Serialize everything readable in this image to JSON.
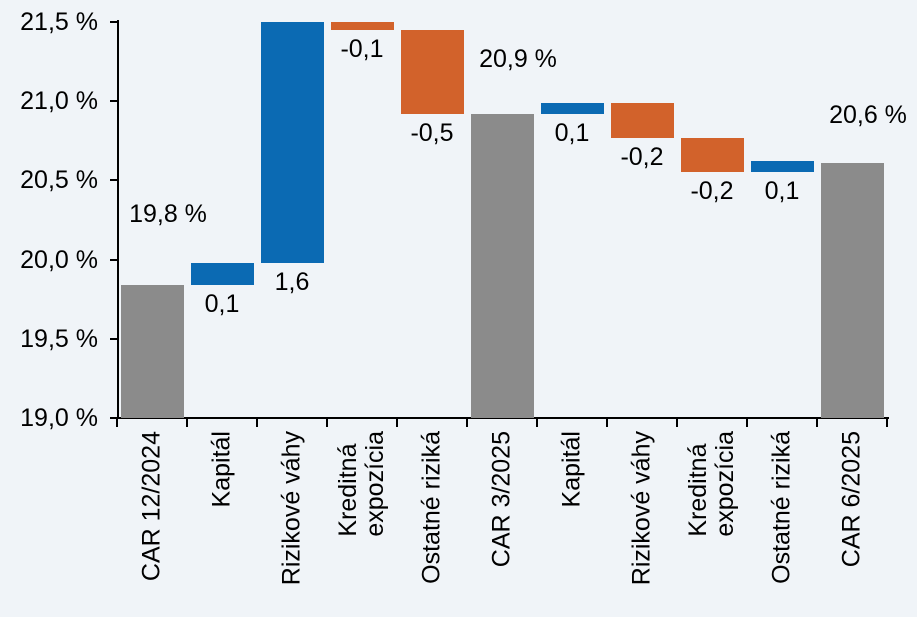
{
  "background_color": "#F0F4F8",
  "colors": {
    "increase": "#0B6AB3",
    "decrease": "#D2622B",
    "total": "#8B8B8B",
    "axis": "#000000",
    "text": "#000000"
  },
  "chart_data": {
    "type": "waterfall",
    "title": "",
    "unit": "%",
    "grid": "off",
    "legend": "none",
    "y_axis": {
      "min": 19.0,
      "max": 21.5,
      "step": 0.5,
      "tick_labels": [
        "21,5 %",
        "21,0 %",
        "20,5 %",
        "20,0 %",
        "19,5 %",
        "19,0 %"
      ]
    },
    "bars": [
      {
        "category": "CAR 12/2024",
        "lines": [
          "CAR 12/2024"
        ],
        "kind": "total",
        "value": 19.8,
        "label": "19,8 %",
        "from": 19.0,
        "to": 19.84,
        "label_gap": 57
      },
      {
        "category": "Kapitál",
        "lines": [
          "Kapitál"
        ],
        "kind": "increase",
        "value": 0.1,
        "label": "0,1",
        "from": 19.84,
        "to": 19.98
      },
      {
        "category": "Rizikové váhy",
        "lines": [
          "Rizikové váhy"
        ],
        "kind": "increase",
        "value": 1.6,
        "label": "1,6",
        "from": 19.98,
        "to": 21.5
      },
      {
        "category": "Kreditná expozícia",
        "lines": [
          "Kreditná",
          "expozícia"
        ],
        "kind": "decrease",
        "value": -0.1,
        "label": "-0,1",
        "from": 21.5,
        "to": 21.45
      },
      {
        "category": "Ostatné riziká",
        "lines": [
          "Ostatné riziká"
        ],
        "kind": "decrease",
        "value": -0.5,
        "label": "-0,5",
        "from": 21.45,
        "to": 20.92
      },
      {
        "category": "CAR 3/2025",
        "lines": [
          "CAR 3/2025"
        ],
        "kind": "total",
        "value": 20.9,
        "label": "20,9 %",
        "from": 19.0,
        "to": 20.92,
        "label_gap": 41
      },
      {
        "category": "Kapitál",
        "lines": [
          "Kapitál"
        ],
        "kind": "increase",
        "value": 0.1,
        "label": "0,1",
        "from": 20.92,
        "to": 20.99
      },
      {
        "category": "Rizikové váhy",
        "lines": [
          "Rizikové váhy"
        ],
        "kind": "decrease",
        "value": -0.2,
        "label": "-0,2",
        "from": 20.99,
        "to": 20.77
      },
      {
        "category": "Kreditná expozícia",
        "lines": [
          "Kreditná",
          "expozícia"
        ],
        "kind": "decrease",
        "value": -0.2,
        "label": "-0,2",
        "from": 20.77,
        "to": 20.55
      },
      {
        "category": "Ostatné riziká",
        "lines": [
          "Ostatné riziká"
        ],
        "kind": "increase",
        "value": 0.1,
        "label": "0,1",
        "from": 20.55,
        "to": 20.62
      },
      {
        "category": "CAR 6/2025",
        "lines": [
          "CAR 6/2025"
        ],
        "kind": "total",
        "value": 20.6,
        "label": "20,6 %",
        "from": 19.0,
        "to": 20.61,
        "label_gap": 34
      }
    ]
  }
}
